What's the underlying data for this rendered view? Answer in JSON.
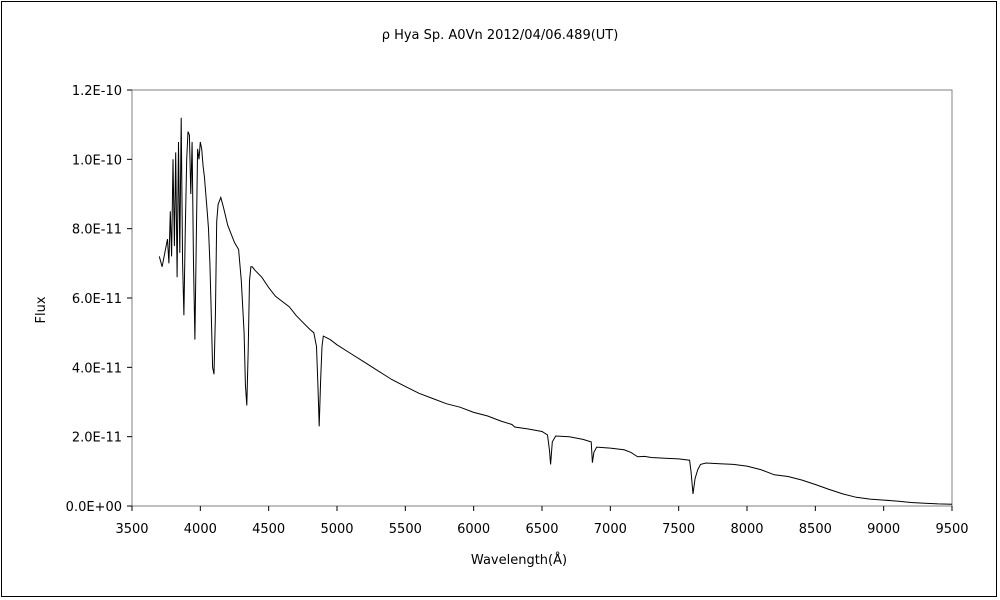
{
  "chart_data": {
    "type": "line",
    "title": "ρ  Hya    Sp. A0Vn    2012/04/06.489(UT)",
    "xlabel": "Wavelength(Å)",
    "ylabel": "Flux",
    "xlim": [
      3500,
      9500
    ],
    "ylim": [
      0,
      1.2e-10
    ],
    "x_ticks": [
      3500,
      4000,
      4500,
      5000,
      5500,
      6000,
      6500,
      7000,
      7500,
      8000,
      8500,
      9000,
      9500
    ],
    "x_tick_labels": [
      "3500",
      "4000",
      "4500",
      "5000",
      "5500",
      "6000",
      "6500",
      "7000",
      "7500",
      "8000",
      "8500",
      "9000",
      "9500"
    ],
    "y_ticks": [
      0,
      2e-11,
      4e-11,
      6e-11,
      8e-11,
      1e-10,
      1.2e-10
    ],
    "y_tick_labels": [
      "0.0E+00",
      "2.0E-11",
      "4.0E-11",
      "6.0E-11",
      "8.0E-11",
      "1.0E-10",
      "1.2E-10"
    ],
    "grid": false,
    "series_color": "#000000",
    "series": [
      {
        "x": [
          3700,
          3720,
          3740,
          3760,
          3770,
          3780,
          3790,
          3800,
          3810,
          3820,
          3830,
          3840,
          3850,
          3860,
          3870,
          3880,
          3890,
          3900,
          3910,
          3920,
          3930,
          3940,
          3950,
          3960,
          3970,
          3980,
          3990,
          4000,
          4010,
          4020,
          4030,
          4040,
          4050,
          4060,
          4070,
          4080,
          4090,
          4100,
          4110,
          4120,
          4130,
          4150,
          4170,
          4200,
          4250,
          4280,
          4300,
          4320,
          4330,
          4340,
          4350,
          4360,
          4370,
          4380,
          4400,
          4450,
          4500,
          4550,
          4600,
          4650,
          4700,
          4750,
          4800,
          4830,
          4850,
          4860,
          4870,
          4880,
          4890,
          4900,
          4950,
          5000,
          5100,
          5200,
          5300,
          5400,
          5500,
          5600,
          5700,
          5800,
          5900,
          6000,
          6100,
          6200,
          6280,
          6300,
          6400,
          6500,
          6540,
          6555,
          6563,
          6575,
          6600,
          6700,
          6800,
          6860,
          6869,
          6880,
          6900,
          7000,
          7100,
          7150,
          7200,
          7250,
          7300,
          7400,
          7500,
          7580,
          7590,
          7605,
          7620,
          7640,
          7660,
          7700,
          7800,
          7900,
          8000,
          8100,
          8200,
          8300,
          8400,
          8500,
          8600,
          8700,
          8800,
          8900,
          9000,
          9100,
          9200,
          9300,
          9400,
          9500
        ],
        "y": [
          7.2e-11,
          6.9e-11,
          7.3e-11,
          7.7e-11,
          7e-11,
          8.5e-11,
          7.2e-11,
          1e-10,
          7.5e-11,
          1.02e-10,
          6.6e-11,
          1.05e-10,
          7.3e-11,
          1.12e-10,
          7e-11,
          5.5e-11,
          8e-11,
          1e-10,
          1.08e-10,
          1.07e-10,
          9e-11,
          1.05e-10,
          7e-11,
          4.8e-11,
          7.5e-11,
          1.03e-10,
          1e-10,
          1.05e-10,
          1.03e-10,
          9.8e-11,
          9.5e-11,
          9e-11,
          8.5e-11,
          8e-11,
          7e-11,
          5.5e-11,
          4e-11,
          3.8e-11,
          5.5e-11,
          8.2e-11,
          8.7e-11,
          8.9e-11,
          8.6e-11,
          8.1e-11,
          7.6e-11,
          7.4e-11,
          6.5e-11,
          5e-11,
          3.5e-11,
          2.9e-11,
          4.5e-11,
          6.5e-11,
          6.9e-11,
          6.9e-11,
          6.8e-11,
          6.6e-11,
          6.3e-11,
          6.05e-11,
          5.9e-11,
          5.75e-11,
          5.5e-11,
          5.3e-11,
          5.1e-11,
          5e-11,
          4.6e-11,
          3.5e-11,
          2.3e-11,
          3.6e-11,
          4.6e-11,
          4.9e-11,
          4.8e-11,
          4.65e-11,
          4.4e-11,
          4.15e-11,
          3.9e-11,
          3.65e-11,
          3.45e-11,
          3.25e-11,
          3.1e-11,
          2.95e-11,
          2.85e-11,
          2.7e-11,
          2.6e-11,
          2.45e-11,
          2.35e-11,
          2.28e-11,
          2.22e-11,
          2.15e-11,
          2.05e-11,
          1.6e-11,
          1.2e-11,
          1.85e-11,
          2.02e-11,
          2e-11,
          1.92e-11,
          1.85e-11,
          1.25e-11,
          1.55e-11,
          1.7e-11,
          1.67e-11,
          1.62e-11,
          1.55e-11,
          1.42e-11,
          1.43e-11,
          1.4e-11,
          1.38e-11,
          1.36e-11,
          1.32e-11,
          1e-11,
          3.5e-12,
          8e-12,
          1.05e-11,
          1.2e-11,
          1.24e-11,
          1.22e-11,
          1.2e-11,
          1.15e-11,
          1.05e-11,
          9e-12,
          8.5e-12,
          7.5e-12,
          6.2e-12,
          4.8e-12,
          3.5e-12,
          2.5e-12,
          2e-12,
          1.7e-12,
          1.4e-12,
          1e-12,
          8e-13,
          6e-13,
          5e-13
        ]
      }
    ]
  }
}
